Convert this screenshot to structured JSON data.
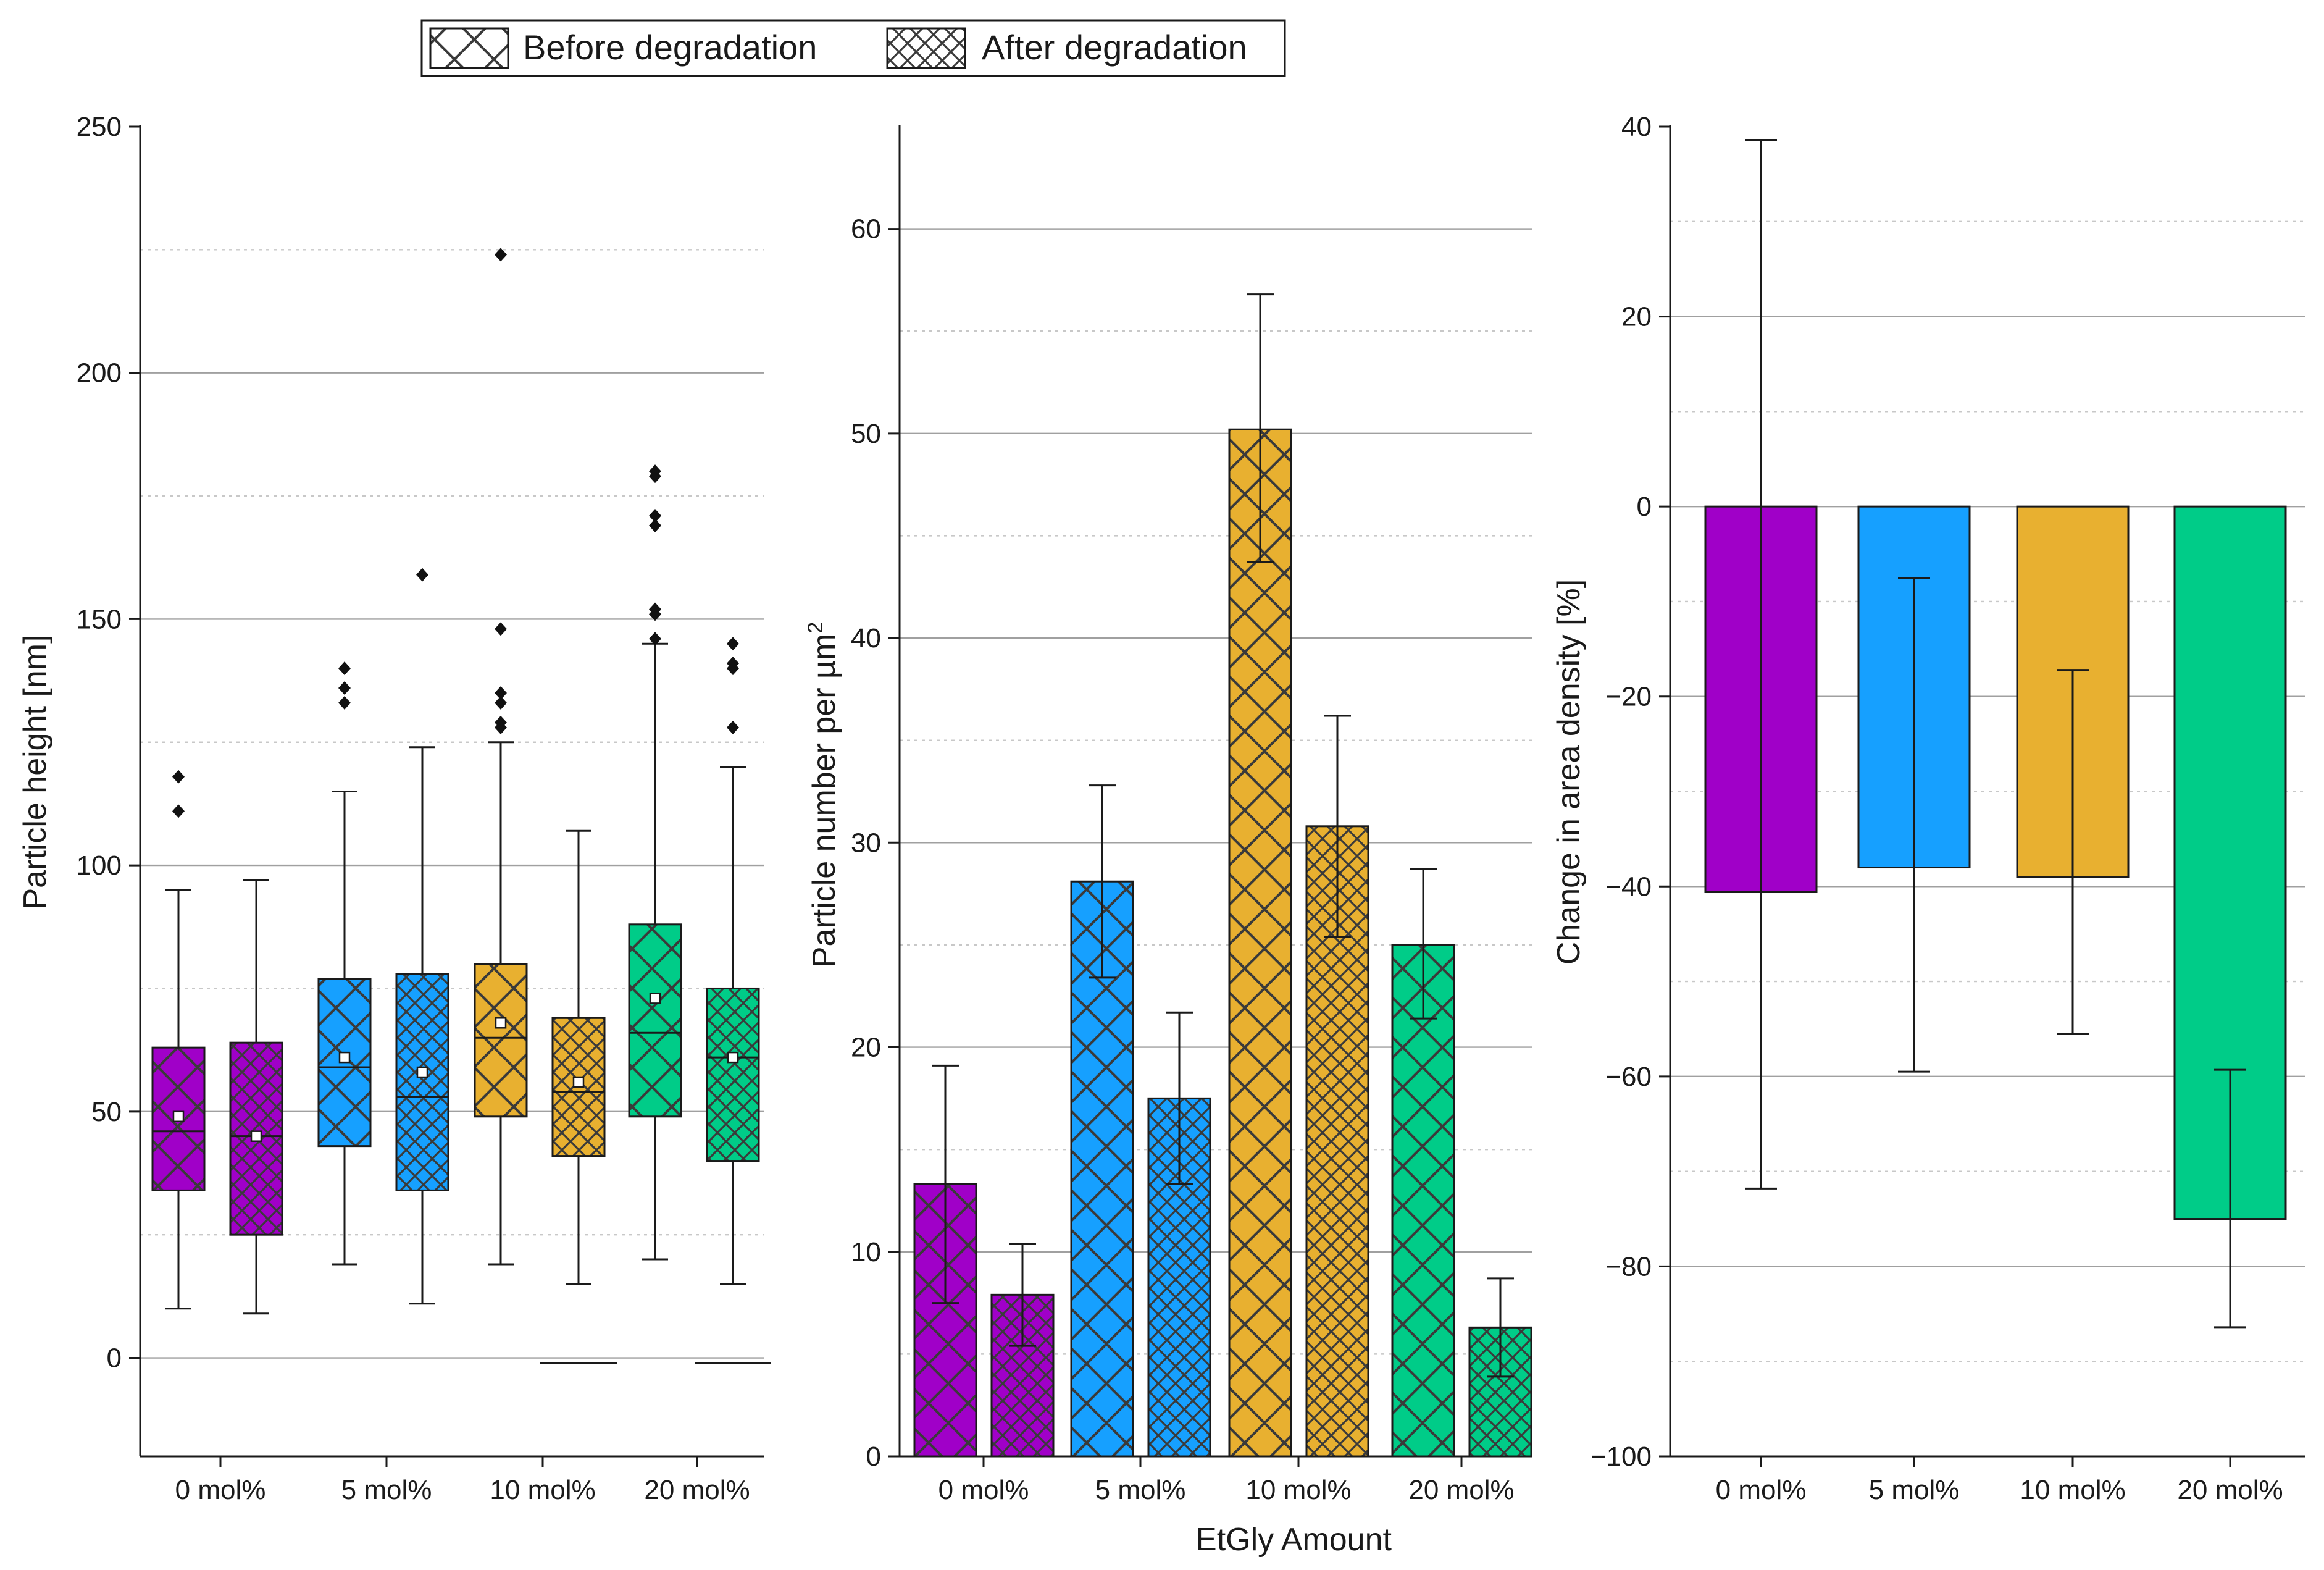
{
  "legend": {
    "before_label": "Before degradation",
    "after_label": "After degradation"
  },
  "shared_xlabel": "EtGly Amount",
  "colors": {
    "0 mol%": "#a000c8",
    "5 mol%": "#16a0ff",
    "10 mol%": "#e8b030",
    "20 mol%": "#00cc88",
    "axis": "#1a1a1a",
    "grid_major": "#a0a0a0",
    "grid_minor": "#c8c8c8",
    "hatch": "#3a3a3a"
  },
  "chart_data": [
    {
      "type": "box",
      "ylabel": "Particle height [nm]",
      "xlabel": "",
      "ylim": [
        -20,
        250
      ],
      "yticks": [
        0,
        50,
        100,
        150,
        200,
        250
      ],
      "ytick_labels": [
        "0",
        "50",
        "100",
        "150",
        "200",
        "250"
      ],
      "minor_grid": [
        25,
        75,
        125,
        175,
        225
      ],
      "categories": [
        "0 mol%",
        "5 mol%",
        "10 mol%",
        "20 mol%"
      ],
      "series": [
        {
          "name": "Before degradation",
          "boxes": [
            {
              "category": "0 mol%",
              "min": 10,
              "q1": 34,
              "median": 46,
              "q3": 63,
              "max": 95,
              "mean": 49,
              "outliers": [
                111,
                118
              ],
              "low_line": null
            },
            {
              "category": "5 mol%",
              "min": 19,
              "q1": 43,
              "median": 59,
              "q3": 77,
              "max": 115,
              "mean": 61,
              "outliers": [
                133,
                136,
                140
              ],
              "low_line": null
            },
            {
              "category": "10 mol%",
              "min": 19,
              "q1": 49,
              "median": 65,
              "q3": 80,
              "max": 125,
              "mean": 68,
              "outliers": [
                128,
                129,
                133,
                135,
                148,
                224
              ],
              "low_line": null
            },
            {
              "category": "20 mol%",
              "min": 20,
              "q1": 49,
              "median": 66,
              "q3": 88,
              "max": 145,
              "mean": 73,
              "outliers": [
                146,
                151,
                152,
                169,
                171,
                179,
                180
              ],
              "low_line": null
            }
          ]
        },
        {
          "name": "After degradation",
          "boxes": [
            {
              "category": "0 mol%",
              "min": 9,
              "q1": 25,
              "median": 45,
              "q3": 64,
              "max": 97,
              "mean": 45,
              "outliers": [],
              "low_line": null
            },
            {
              "category": "5 mol%",
              "min": 11,
              "q1": 34,
              "median": 53,
              "q3": 78,
              "max": 124,
              "mean": 58,
              "outliers": [
                159
              ],
              "low_line": null
            },
            {
              "category": "10 mol%",
              "min": 15,
              "q1": 41,
              "median": 54,
              "q3": 69,
              "max": 107,
              "mean": 56,
              "outliers": [],
              "low_line": -1
            },
            {
              "category": "20 mol%",
              "min": 15,
              "q1": 40,
              "median": 61,
              "q3": 75,
              "max": 120,
              "mean": 61,
              "outliers": [
                128,
                140,
                141,
                145
              ],
              "low_line": -1
            }
          ]
        }
      ]
    },
    {
      "type": "bar",
      "ylabel": "Particle number per µm",
      "ylabel_superscript": "2",
      "xlabel": "EtGly Amount",
      "ylim": [
        0,
        65
      ],
      "yticks": [
        0,
        10,
        20,
        30,
        40,
        50,
        60
      ],
      "ytick_labels": [
        "0",
        "10",
        "20",
        "30",
        "40",
        "50",
        "60"
      ],
      "minor_grid": [
        5,
        15,
        25,
        35,
        45,
        55
      ],
      "categories": [
        "0 mol%",
        "5 mol%",
        "10 mol%",
        "20 mol%"
      ],
      "series": [
        {
          "name": "Before degradation",
          "values": [
            13.3,
            28.1,
            50.2,
            25.0
          ],
          "err_low": [
            7.5,
            23.4,
            43.7,
            21.4
          ],
          "err_high": [
            19.1,
            32.8,
            56.8,
            28.7
          ]
        },
        {
          "name": "After degradation",
          "values": [
            7.9,
            17.5,
            30.8,
            6.3
          ],
          "err_low": [
            5.4,
            13.3,
            25.4,
            3.9
          ],
          "err_high": [
            10.4,
            21.7,
            36.2,
            8.7
          ]
        }
      ]
    },
    {
      "type": "bar",
      "ylabel": "Change in area density [%]",
      "xlabel": "",
      "ylim": [
        -100,
        40
      ],
      "yticks": [
        -100,
        -80,
        -60,
        -40,
        -20,
        0,
        20,
        40
      ],
      "ytick_labels": [
        "−100",
        "−80",
        "−60",
        "−40",
        "−20",
        "0",
        "20",
        "40"
      ],
      "minor_grid": [
        -90,
        -70,
        -50,
        -30,
        -10,
        10,
        30
      ],
      "categories": [
        "0 mol%",
        "5 mol%",
        "10 mol%",
        "20 mol%"
      ],
      "series": [
        {
          "name": "Change",
          "values": [
            -40.6,
            -38.0,
            -39.0,
            -75.0
          ],
          "err_low": [
            -71.8,
            -59.5,
            -55.5,
            -86.4
          ],
          "err_high": [
            38.6,
            -7.5,
            -17.2,
            -59.3
          ]
        }
      ]
    }
  ]
}
